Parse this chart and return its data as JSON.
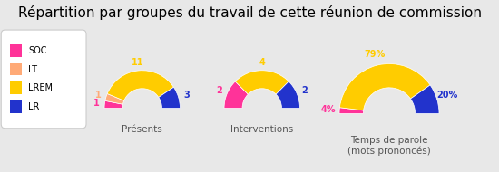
{
  "title": "Répartition par groupes du travail de cette réunion de commission",
  "title_fontsize": 11,
  "background_color": "#e8e8e8",
  "legend_labels": [
    "SOC",
    "LT",
    "LREM",
    "LR"
  ],
  "colors": {
    "SOC": "#ff3399",
    "LT": "#ffaa77",
    "LREM": "#ffcc00",
    "LR": "#2233cc"
  },
  "charts": [
    {
      "title": "Présents",
      "values": [
        1,
        1,
        11,
        3
      ],
      "groups": [
        "SOC",
        "LT",
        "LREM",
        "LR"
      ],
      "labels": [
        "1",
        "1",
        "11",
        "3"
      ],
      "label_colors": [
        "#ff3399",
        "#ffaa77",
        "#ffcc00",
        "#2233cc"
      ]
    },
    {
      "title": "Interventions",
      "values": [
        2,
        0,
        4,
        2
      ],
      "groups": [
        "SOC",
        "LT",
        "LREM",
        "LR"
      ],
      "labels": [
        "2",
        "",
        "4",
        "2"
      ],
      "label_colors": [
        "#ff3399",
        "#ffaa77",
        "#ffcc00",
        "#2233cc"
      ]
    },
    {
      "title": "Temps de parole\n(mots prononcés)",
      "values": [
        4,
        0,
        79,
        20
      ],
      "groups": [
        "SOC",
        "LT",
        "LREM",
        "LR"
      ],
      "labels": [
        "4%",
        "",
        "79%",
        "20%"
      ],
      "label_colors": [
        "#ff3399",
        "#ffaa77",
        "#ffcc00",
        "#2233cc"
      ]
    }
  ]
}
